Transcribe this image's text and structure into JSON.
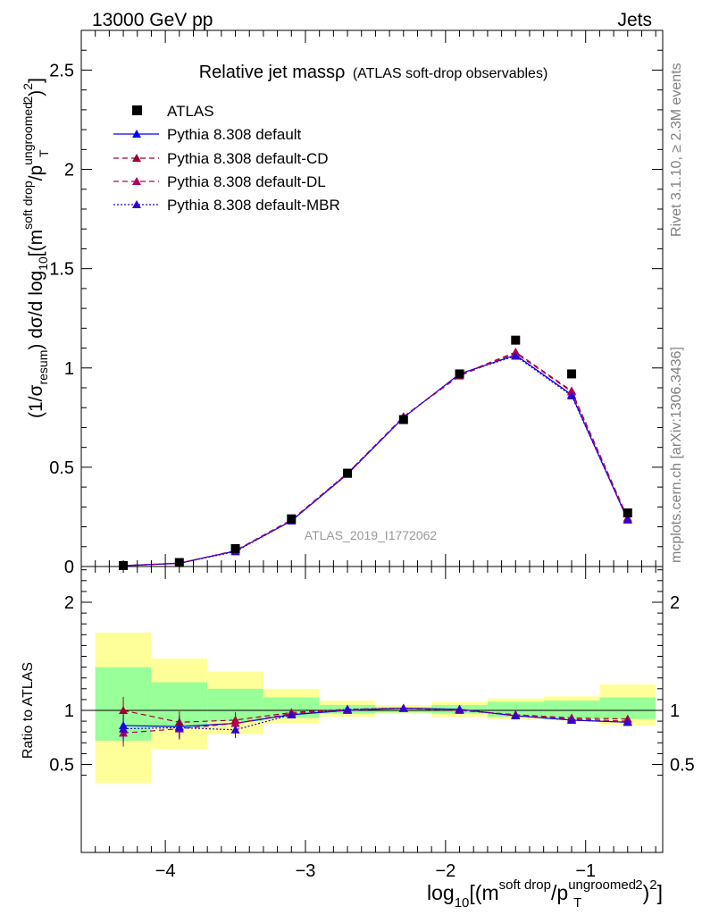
{
  "header": {
    "left": "13000 GeV pp",
    "right": "Jets",
    "side_top": "Rivet 3.1.10, ≥ 2.3M events",
    "side_bottom": "mcplots.cern.ch [arXiv:1306.3436]",
    "analysis": "ATLAS_2019_I1772062"
  },
  "colors": {
    "band_inner": "#99ff99",
    "band_outer": "#ffff99",
    "data": "#000000",
    "default": "#0000ff",
    "default_cd": "#a0002a",
    "default_dl": "#b00060",
    "default_mbr": "#3300cc"
  },
  "chart_data": [
    {
      "type": "scatter",
      "title_main": "Relative jet massρ",
      "title_sub": "(ATLAS soft-drop observables)",
      "ylabel": "(1/σresum) dσ/d log10[(msoft drop/pTungroomed)2]",
      "xlim": [
        -4.6,
        -0.45
      ],
      "ylim": [
        0,
        2.7
      ],
      "yticks": [
        0,
        0.5,
        1,
        1.5,
        2,
        2.5
      ],
      "yticklabels": [
        "0",
        "0.5",
        "1",
        "1.5",
        "2",
        "2.5"
      ],
      "x": [
        -4.3,
        -3.9,
        -3.5,
        -3.1,
        -2.7,
        -2.3,
        -1.9,
        -1.5,
        -1.1,
        -0.7
      ],
      "series": [
        {
          "name": "ATLAS",
          "marker": "square",
          "style": "none",
          "values": [
            0.005,
            0.02,
            0.09,
            0.24,
            0.47,
            0.74,
            0.97,
            1.14,
            0.97,
            0.27
          ]
        },
        {
          "name": "Pythia 8.308 default",
          "marker": "triangle",
          "style": "solid",
          "values": [
            0.004,
            0.017,
            0.078,
            0.23,
            0.465,
            0.75,
            0.97,
            1.065,
            0.865,
            0.235
          ]
        },
        {
          "name": "Pythia 8.308 default-CD",
          "marker": "triangle",
          "style": "dashed",
          "values": [
            0.005,
            0.017,
            0.08,
            0.235,
            0.47,
            0.755,
            0.965,
            1.08,
            0.885,
            0.245
          ]
        },
        {
          "name": "Pythia 8.308 default-DL",
          "marker": "triangle",
          "style": "dashed",
          "values": [
            0.004,
            0.016,
            0.08,
            0.235,
            0.465,
            0.755,
            0.96,
            1.075,
            0.88,
            0.24
          ]
        },
        {
          "name": "Pythia 8.308 default-MBR",
          "marker": "triangle",
          "style": "dotted",
          "values": [
            0.004,
            0.016,
            0.075,
            0.23,
            0.47,
            0.75,
            0.97,
            1.06,
            0.86,
            0.235
          ]
        }
      ]
    },
    {
      "type": "scatter",
      "xlabel": "log10[(msoft drop/pTungroomed)2]",
      "ylabel": "Ratio to ATLAS",
      "xlim": [
        -4.6,
        -0.45
      ],
      "ylim": [
        0.33,
        2.33
      ],
      "xticks": [
        -4,
        -3,
        -2,
        -1
      ],
      "xticklabels": [
        "−4",
        "−3",
        "−2",
        "−1"
      ],
      "yticks": [
        0.5,
        1,
        2
      ],
      "yticklabels": [
        "0.5",
        "1",
        "2"
      ],
      "bins": [
        -4.5,
        -4.1,
        -3.7,
        -3.3,
        -2.9,
        -2.5,
        -2.1,
        -1.7,
        -1.3,
        -0.9,
        -0.5
      ],
      "band_inner": [
        [
          0.72,
          1.4
        ],
        [
          0.84,
          1.26
        ],
        [
          0.9,
          1.2
        ],
        [
          0.93,
          1.12
        ],
        [
          0.97,
          1.05
        ],
        [
          0.98,
          1.03
        ],
        [
          0.97,
          1.05
        ],
        [
          0.94,
          1.08
        ],
        [
          0.92,
          1.09
        ],
        [
          0.92,
          1.12
        ]
      ],
      "band_outer": [
        [
          0.33,
          1.72
        ],
        [
          0.64,
          1.48
        ],
        [
          0.78,
          1.36
        ],
        [
          0.88,
          1.2
        ],
        [
          0.94,
          1.09
        ],
        [
          0.97,
          1.05
        ],
        [
          0.94,
          1.08
        ],
        [
          0.92,
          1.11
        ],
        [
          0.91,
          1.13
        ],
        [
          0.86,
          1.24
        ]
      ],
      "x": [
        -4.3,
        -3.9,
        -3.5,
        -3.1,
        -2.7,
        -2.3,
        -1.9,
        -1.5,
        -1.1,
        -0.7
      ],
      "series": [
        {
          "name": "Pythia 8.308 default",
          "values": [
            0.86,
            0.85,
            0.88,
            0.96,
            1.0,
            1.02,
            1.01,
            0.95,
            0.91,
            0.89
          ]
        },
        {
          "name": "Pythia 8.308 default-CD",
          "values": [
            1.0,
            0.89,
            0.91,
            0.98,
            1.01,
            1.02,
            1.0,
            0.96,
            0.93,
            0.92
          ]
        },
        {
          "name": "Pythia 8.308 default-DL",
          "values": [
            0.79,
            0.83,
            0.88,
            0.97,
            1.0,
            1.02,
            1.0,
            0.96,
            0.92,
            0.9
          ]
        },
        {
          "name": "Pythia 8.308 default-MBR",
          "values": [
            0.83,
            0.84,
            0.82,
            0.96,
            1.01,
            1.02,
            1.01,
            0.95,
            0.91,
            0.89
          ]
        }
      ]
    }
  ]
}
